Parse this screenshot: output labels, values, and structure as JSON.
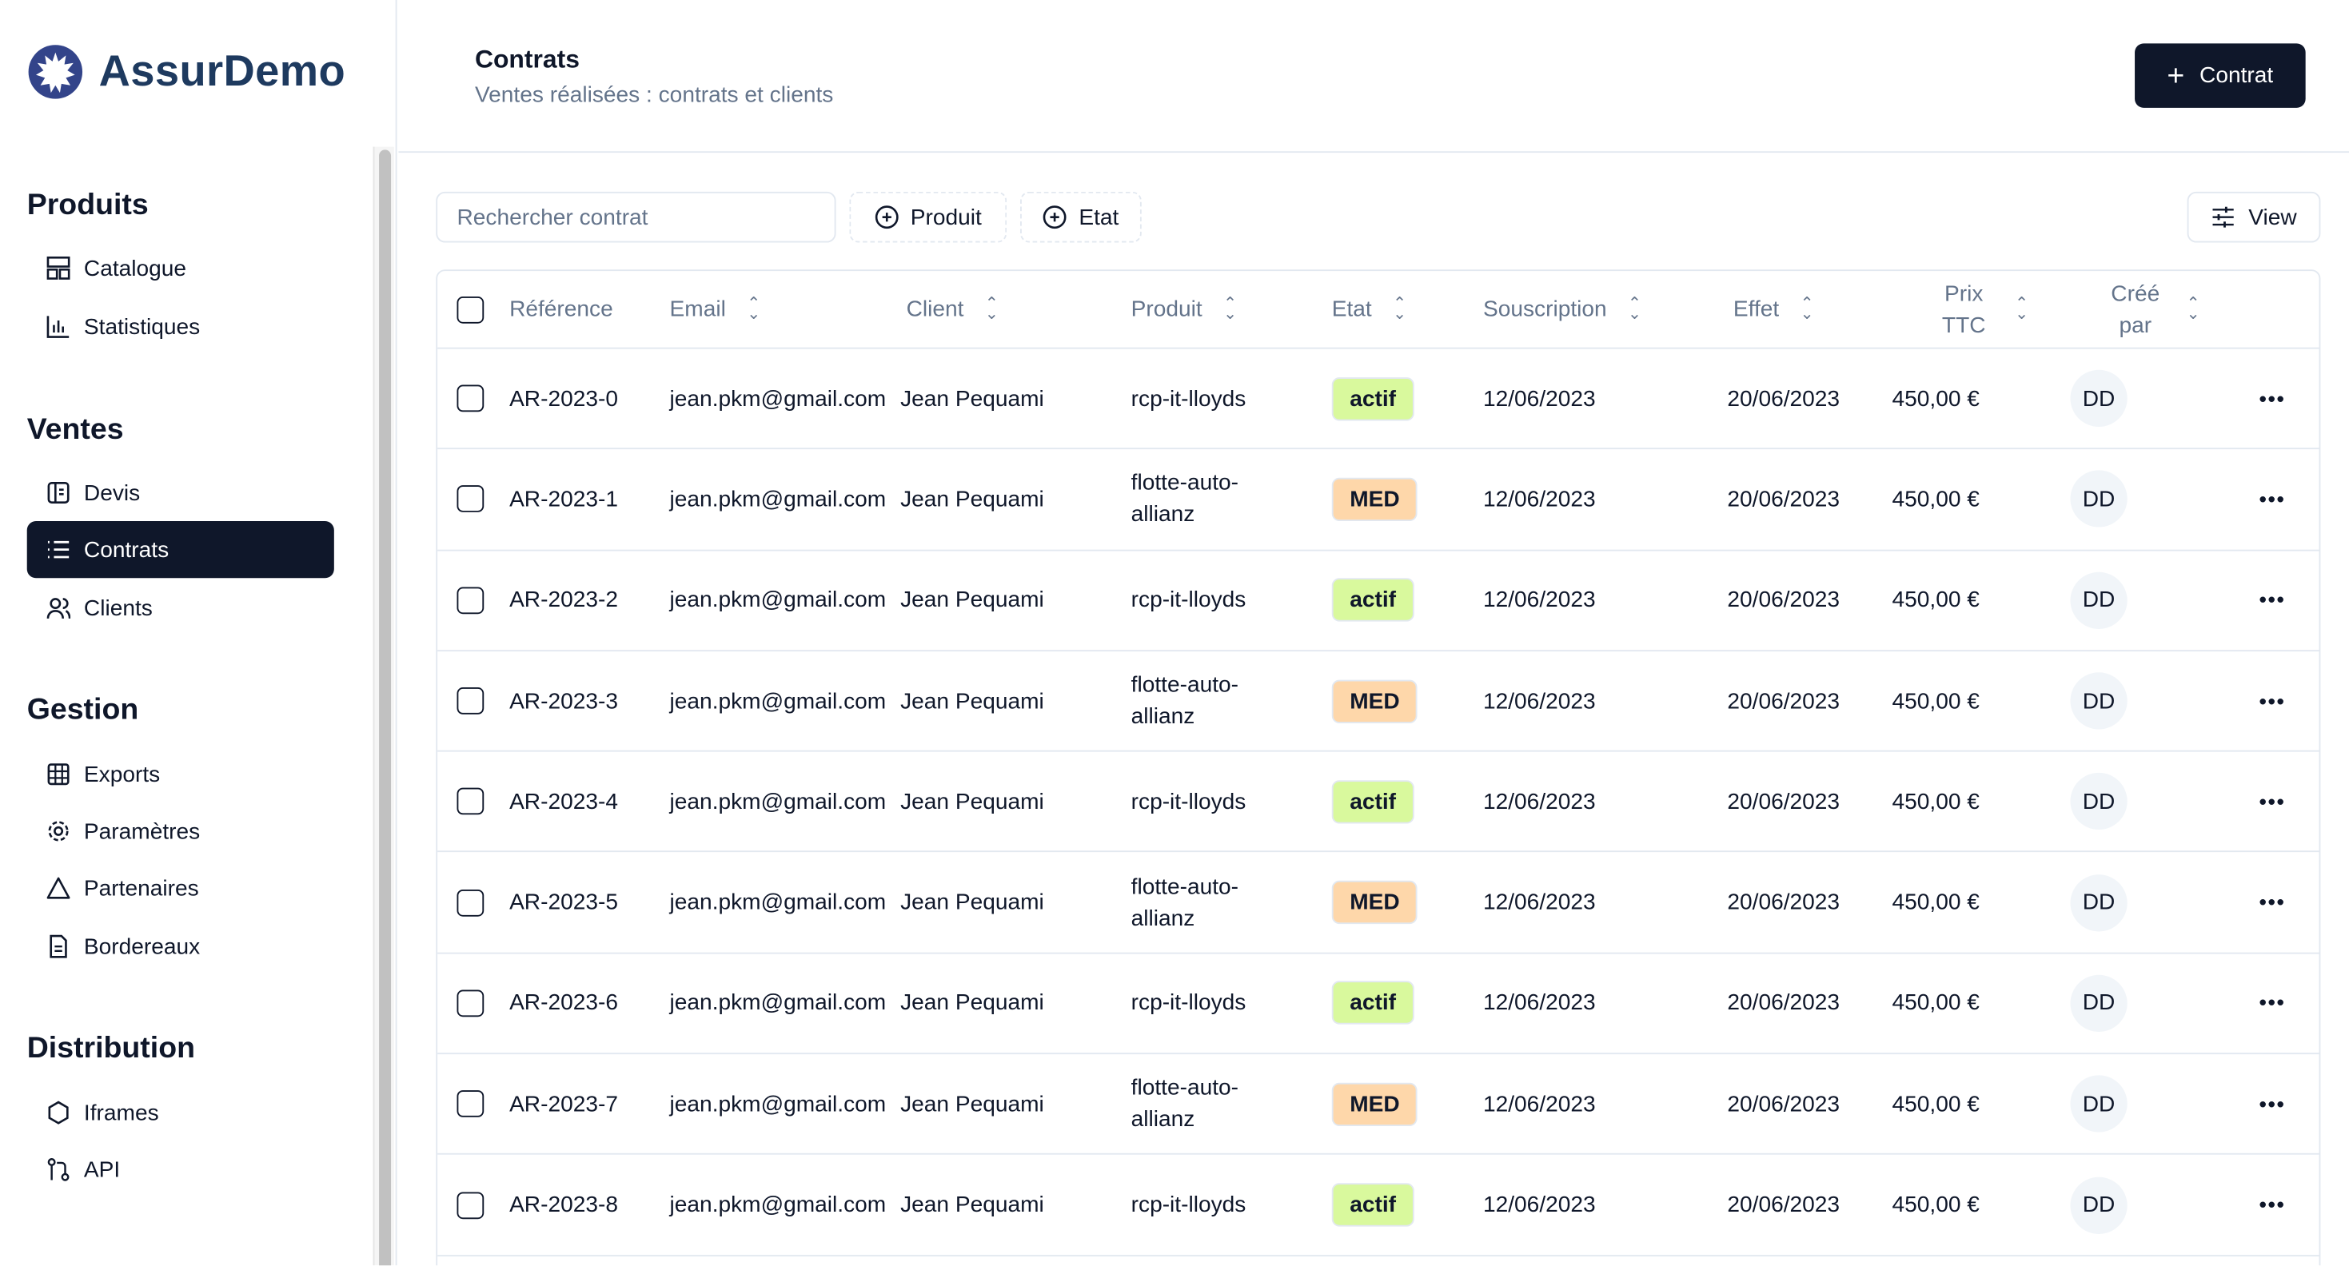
{
  "brand": {
    "name": "AssurDemo"
  },
  "sidebar": {
    "sections": [
      {
        "title": "Produits",
        "items": [
          {
            "label": "Catalogue",
            "icon": "catalog-icon"
          },
          {
            "label": "Statistiques",
            "icon": "bar-chart-icon"
          }
        ]
      },
      {
        "title": "Ventes",
        "items": [
          {
            "label": "Devis",
            "icon": "quote-icon"
          },
          {
            "label": "Contrats",
            "icon": "list-icon",
            "active": true
          },
          {
            "label": "Clients",
            "icon": "users-icon"
          }
        ]
      },
      {
        "title": "Gestion",
        "items": [
          {
            "label": "Exports",
            "icon": "table-icon"
          },
          {
            "label": "Paramètres",
            "icon": "gear-icon"
          },
          {
            "label": "Partenaires",
            "icon": "triangle-icon"
          },
          {
            "label": "Bordereaux",
            "icon": "file-icon"
          }
        ]
      },
      {
        "title": "Distribution",
        "items": [
          {
            "label": "Iframes",
            "icon": "hexagon-icon"
          },
          {
            "label": "API",
            "icon": "git-pull-icon"
          }
        ]
      }
    ]
  },
  "header": {
    "title": "Contrats",
    "subtitle": "Ventes réalisées : contrats et clients",
    "new_button": "Contrat"
  },
  "toolbar": {
    "search_placeholder": "Rechercher contrat",
    "filter_produit": "Produit",
    "filter_etat": "Etat",
    "view": "View"
  },
  "table": {
    "columns": [
      "Référence",
      "Email",
      "Client",
      "Produit",
      "Etat",
      "Souscription",
      "Effet",
      "Prix TTC",
      "Créé par"
    ],
    "rows": [
      {
        "ref": "AR-2023-0",
        "email": "jean.pkm@gmail.com",
        "client": "Jean Pequami",
        "produit": "rcp-it-lloyds",
        "etat": "actif",
        "souscription": "12/06/2023",
        "effet": "20/06/2023",
        "prix": "450,00 €",
        "cree": "DD"
      },
      {
        "ref": "AR-2023-1",
        "email": "jean.pkm@gmail.com",
        "client": "Jean Pequami",
        "produit": "flotte-auto-allianz",
        "etat": "MED",
        "souscription": "12/06/2023",
        "effet": "20/06/2023",
        "prix": "450,00 €",
        "cree": "DD"
      },
      {
        "ref": "AR-2023-2",
        "email": "jean.pkm@gmail.com",
        "client": "Jean Pequami",
        "produit": "rcp-it-lloyds",
        "etat": "actif",
        "souscription": "12/06/2023",
        "effet": "20/06/2023",
        "prix": "450,00 €",
        "cree": "DD"
      },
      {
        "ref": "AR-2023-3",
        "email": "jean.pkm@gmail.com",
        "client": "Jean Pequami",
        "produit": "flotte-auto-allianz",
        "etat": "MED",
        "souscription": "12/06/2023",
        "effet": "20/06/2023",
        "prix": "450,00 €",
        "cree": "DD"
      },
      {
        "ref": "AR-2023-4",
        "email": "jean.pkm@gmail.com",
        "client": "Jean Pequami",
        "produit": "rcp-it-lloyds",
        "etat": "actif",
        "souscription": "12/06/2023",
        "effet": "20/06/2023",
        "prix": "450,00 €",
        "cree": "DD"
      },
      {
        "ref": "AR-2023-5",
        "email": "jean.pkm@gmail.com",
        "client": "Jean Pequami",
        "produit": "flotte-auto-allianz",
        "etat": "MED",
        "souscription": "12/06/2023",
        "effet": "20/06/2023",
        "prix": "450,00 €",
        "cree": "DD"
      },
      {
        "ref": "AR-2023-6",
        "email": "jean.pkm@gmail.com",
        "client": "Jean Pequami",
        "produit": "rcp-it-lloyds",
        "etat": "actif",
        "souscription": "12/06/2023",
        "effet": "20/06/2023",
        "prix": "450,00 €",
        "cree": "DD"
      },
      {
        "ref": "AR-2023-7",
        "email": "jean.pkm@gmail.com",
        "client": "Jean Pequami",
        "produit": "flotte-auto-allianz",
        "etat": "MED",
        "souscription": "12/06/2023",
        "effet": "20/06/2023",
        "prix": "450,00 €",
        "cree": "DD"
      },
      {
        "ref": "AR-2023-8",
        "email": "jean.pkm@gmail.com",
        "client": "Jean Pequami",
        "produit": "rcp-it-lloyds",
        "etat": "actif",
        "souscription": "12/06/2023",
        "effet": "20/06/2023",
        "prix": "450,00 €",
        "cree": "DD"
      }
    ]
  },
  "colors": {
    "primary": "#0f172a",
    "logo": "#1e3a5f",
    "actif_bg": "#d9f99d",
    "med_bg": "#fed7aa"
  }
}
